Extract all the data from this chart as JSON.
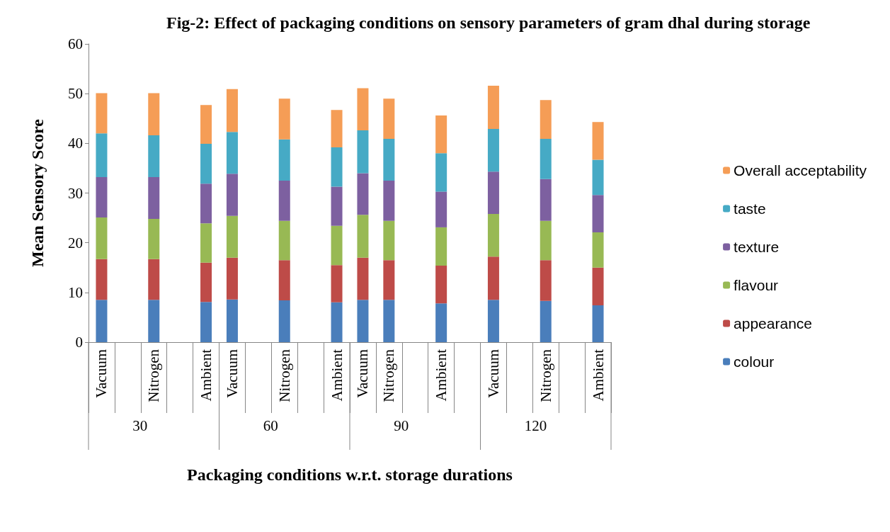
{
  "chart_data": {
    "type": "bar",
    "stacked": true,
    "title": "Fig-2: Effect of packaging conditions on sensory parameters of gram dhal during storage",
    "xlabel": "Packaging conditions w.r.t. storage durations",
    "ylabel": "Mean Sensory Score",
    "categories": [
      "Vacuum",
      null,
      "Nitrogen",
      null,
      "Ambient",
      "Vacuum",
      null,
      "Nitrogen",
      null,
      "Ambient",
      "Vacuum",
      "Nitrogen",
      null,
      "Ambient",
      null,
      "Vacuum",
      null,
      "Nitrogen",
      null,
      "Ambient"
    ],
    "annotations": [
      "30",
      "60",
      "90",
      "120"
    ],
    "ylim": [
      0,
      60
    ],
    "yticks": [
      0,
      10,
      20,
      30,
      40,
      50,
      60
    ],
    "legend": "right",
    "series": [
      {
        "name": "colour",
        "color": "#4a7ebb",
        "values": [
          8.5,
          null,
          8.5,
          null,
          8.1,
          8.6,
          null,
          8.4,
          null,
          8.0,
          8.5,
          8.5,
          null,
          7.8,
          null,
          8.5,
          null,
          8.3,
          null,
          7.4
        ]
      },
      {
        "name": "appearance",
        "color": "#be4b48",
        "values": [
          8.2,
          null,
          8.2,
          null,
          7.9,
          8.4,
          null,
          8.1,
          null,
          7.5,
          8.5,
          8.0,
          null,
          7.6,
          null,
          8.7,
          null,
          8.2,
          null,
          7.6
        ]
      },
      {
        "name": "flavour",
        "color": "#98b954",
        "values": [
          8.4,
          null,
          8.1,
          null,
          7.9,
          8.4,
          null,
          7.9,
          null,
          7.9,
          8.6,
          7.9,
          null,
          7.7,
          null,
          8.6,
          null,
          7.9,
          null,
          7.1
        ]
      },
      {
        "name": "texture",
        "color": "#7d60a0",
        "values": [
          8.1,
          null,
          8.4,
          null,
          8.0,
          8.5,
          null,
          8.1,
          null,
          7.9,
          8.4,
          8.1,
          null,
          7.2,
          null,
          8.5,
          null,
          8.4,
          null,
          7.5
        ]
      },
      {
        "name": "taste",
        "color": "#46aac5",
        "values": [
          8.8,
          null,
          8.4,
          null,
          8.0,
          8.4,
          null,
          8.3,
          null,
          7.9,
          8.6,
          8.4,
          null,
          7.7,
          null,
          8.6,
          null,
          8.1,
          null,
          7.1
        ]
      },
      {
        "name": "Overall acceptability",
        "color": "#f59d56",
        "values": [
          8.1,
          null,
          8.5,
          null,
          7.8,
          8.6,
          null,
          8.2,
          null,
          7.5,
          8.5,
          8.1,
          null,
          7.6,
          null,
          8.7,
          null,
          7.8,
          null,
          7.6
        ]
      }
    ]
  }
}
